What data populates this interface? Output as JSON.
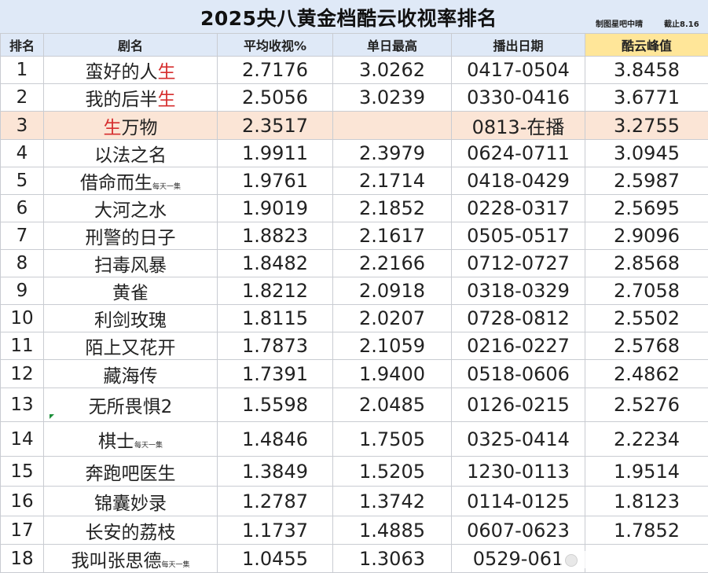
{
  "title": "2025央八黄金档酷云收视率排名",
  "credits": [
    "制图星吧中晴",
    "截止8.16"
  ],
  "headers": [
    "排名",
    "剧名",
    "平均收视%",
    "单日最高",
    "播出日期",
    "酷云峰值"
  ],
  "rows": [
    {
      "rank": "1",
      "name_main": "蛮好的人",
      "name_red": "生",
      "avg": "2.7176",
      "high": "3.0262",
      "date": "0417-0504",
      "peak": "3.8458"
    },
    {
      "rank": "2",
      "name_main": "我的后半",
      "name_red": "生",
      "avg": "2.5056",
      "high": "3.0239",
      "date": "0330-0416",
      "peak": "3.6771"
    },
    {
      "rank": "3",
      "name_red_prefix": "生",
      "name_main": "万物",
      "avg": "2.3517",
      "high": "",
      "date": "0813-在播",
      "peak": "3.2755",
      "highlight": true
    },
    {
      "rank": "4",
      "name_main": "以法之名",
      "avg": "1.9911",
      "high": "2.3979",
      "date": "0624-0711",
      "peak": "3.0945"
    },
    {
      "rank": "5",
      "name_main": "借命而生",
      "note": "每天一集",
      "avg": "1.9761",
      "high": "2.1714",
      "date": "0418-0429",
      "peak": "2.5987"
    },
    {
      "rank": "6",
      "name_main": "大河之水",
      "avg": "1.9019",
      "high": "2.1852",
      "date": "0228-0317",
      "peak": "2.5695"
    },
    {
      "rank": "7",
      "name_main": "刑警的日子",
      "avg": "1.8823",
      "high": "2.1617",
      "date": "0505-0517",
      "peak": "2.9096"
    },
    {
      "rank": "8",
      "name_main": "扫毒风暴",
      "avg": "1.8482",
      "high": "2.2166",
      "date": "0712-0727",
      "peak": "2.8568"
    },
    {
      "rank": "9",
      "name_main": "黄雀",
      "avg": "1.8212",
      "high": "2.0918",
      "date": "0318-0329",
      "peak": "2.7058"
    },
    {
      "rank": "10",
      "name_main": "利剑玫瑰",
      "avg": "1.8115",
      "high": "2.0207",
      "date": "0728-0812",
      "peak": "2.5502"
    },
    {
      "rank": "11",
      "name_main": "陌上又花开",
      "avg": "1.7873",
      "high": "2.1059",
      "date": "0216-0227",
      "peak": "2.5768"
    },
    {
      "rank": "12",
      "name_main": "藏海传",
      "avg": "1.7391",
      "high": "1.9400",
      "date": "0518-0606",
      "peak": "2.4862"
    },
    {
      "rank": "13",
      "name_main": "无所畏惧2",
      "avg": "1.5598",
      "high": "2.0485",
      "date": "0126-0215",
      "peak": "2.5276"
    },
    {
      "rank": "14",
      "name_main": "棋士",
      "note": "每天一集",
      "avg": "1.4846",
      "high": "1.7505",
      "date": "0325-0414",
      "peak": "2.2234"
    },
    {
      "rank": "15",
      "name_main": "奔跑吧医生",
      "avg": "1.3849",
      "high": "1.5205",
      "date": "1230-0113",
      "peak": "1.9514"
    },
    {
      "rank": "16",
      "name_main": "锦囊妙录",
      "avg": "1.2787",
      "high": "1.3742",
      "date": "0114-0125",
      "peak": "1.8123"
    },
    {
      "rank": "17",
      "name_main": "长安的荔枝",
      "avg": "1.1737",
      "high": "1.4885",
      "date": "0607-0623",
      "peak": "1.7852"
    },
    {
      "rank": "18",
      "name_main": "我叫张思德",
      "note": "每天一集",
      "avg": "1.0455",
      "high": "1.3063",
      "date": "0529-061",
      "peak": ""
    }
  ],
  "colors": {
    "header_bg": "#dfe9f7",
    "peak_header_bg": "#ffe699",
    "highlight_row_bg": "#fbe5d6",
    "accent_red": "#d62e2e"
  }
}
